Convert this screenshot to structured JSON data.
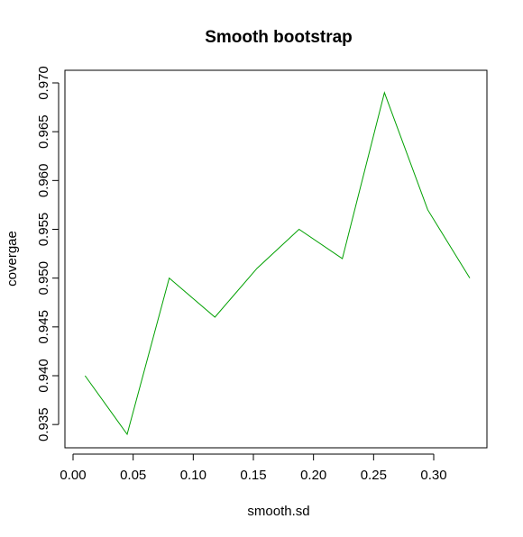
{
  "chart_data": {
    "type": "line",
    "title": "Smooth bootstrap",
    "xlabel": "smooth.sd",
    "ylabel": "covergae",
    "xlim": [
      0.0,
      0.33
    ],
    "ylim": [
      0.934,
      0.97
    ],
    "x_ticks": [
      0.0,
      0.05,
      0.1,
      0.15,
      0.2,
      0.25,
      0.3
    ],
    "x_tick_labels": [
      "0.00",
      "0.05",
      "0.10",
      "0.15",
      "0.20",
      "0.25",
      "0.30"
    ],
    "y_ticks": [
      0.935,
      0.94,
      0.945,
      0.95,
      0.955,
      0.96,
      0.965,
      0.97
    ],
    "y_tick_labels": [
      "0.935",
      "0.940",
      "0.945",
      "0.950",
      "0.955",
      "0.960",
      "0.965",
      "0.970"
    ],
    "grid": false,
    "series": [
      {
        "color": "#00a000",
        "x": [
          0.01,
          0.045,
          0.08,
          0.118,
          0.153,
          0.188,
          0.224,
          0.259,
          0.295,
          0.33
        ],
        "y": [
          0.94,
          0.934,
          0.95,
          0.946,
          0.951,
          0.955,
          0.952,
          0.969,
          0.957,
          0.95
        ]
      }
    ]
  }
}
